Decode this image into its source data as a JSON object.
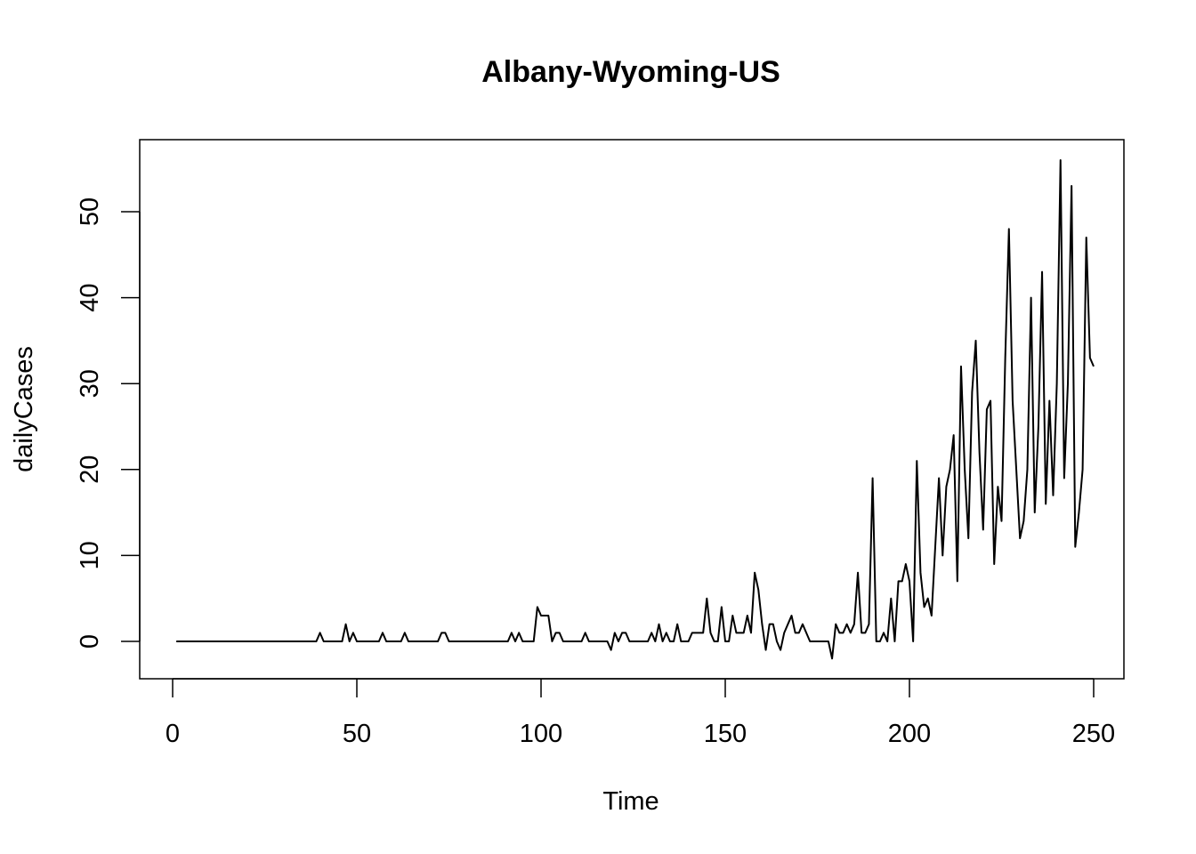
{
  "chart_data": {
    "type": "line",
    "title": "Albany-Wyoming-US",
    "xlabel": "Time",
    "ylabel": "dailyCases",
    "xlim": [
      1,
      248
    ],
    "ylim": [
      -2,
      56
    ],
    "xticks": [
      0,
      50,
      100,
      150,
      200,
      250
    ],
    "yticks": [
      0,
      10,
      20,
      30,
      40,
      50
    ],
    "grid": false,
    "legend": "none",
    "line_color": "#000000",
    "series": [
      {
        "x_start": 1,
        "values": [
          0,
          0,
          0,
          0,
          0,
          0,
          0,
          0,
          0,
          0,
          0,
          0,
          0,
          0,
          0,
          0,
          0,
          0,
          0,
          0,
          0,
          0,
          0,
          0,
          0,
          0,
          0,
          0,
          0,
          0,
          0,
          0,
          0,
          0,
          0,
          0,
          0,
          0,
          0,
          1,
          0,
          0,
          0,
          0,
          0,
          0,
          2,
          0,
          1,
          0,
          0,
          0,
          0,
          0,
          0,
          0,
          1,
          0,
          0,
          0,
          0,
          0,
          1,
          0,
          0,
          0,
          0,
          0,
          0,
          0,
          0,
          0,
          1,
          1,
          0,
          0,
          0,
          0,
          0,
          0,
          0,
          0,
          0,
          0,
          0,
          0,
          0,
          0,
          0,
          0,
          0,
          1,
          0,
          1,
          0,
          0,
          0,
          0,
          4,
          3,
          3,
          3,
          0,
          1,
          1,
          0,
          0,
          0,
          0,
          0,
          0,
          1,
          0,
          0,
          0,
          0,
          0,
          0,
          -1,
          1,
          0,
          1,
          1,
          0,
          0,
          0,
          0,
          0,
          0,
          1,
          0,
          2,
          0,
          1,
          0,
          0,
          2,
          0,
          0,
          0,
          1,
          1,
          1,
          1,
          5,
          1,
          0,
          0,
          4,
          0,
          0,
          3,
          1,
          1,
          1,
          3,
          1,
          8,
          6,
          2,
          -1,
          2,
          2,
          0,
          -1,
          1,
          2,
          3,
          1,
          1,
          2,
          1,
          0,
          0,
          0,
          0,
          0,
          0,
          -2,
          2,
          1,
          1,
          2,
          1,
          2,
          8,
          1,
          1,
          2,
          19,
          0,
          0,
          1,
          0,
          5,
          0,
          7,
          7,
          9,
          7,
          0,
          21,
          8,
          4,
          5,
          3,
          11,
          19,
          10,
          18,
          20,
          24,
          7,
          32,
          20,
          12,
          29,
          35,
          22,
          13,
          27,
          28,
          9,
          18,
          14,
          33,
          48,
          28,
          20,
          12,
          14,
          20,
          40,
          15,
          25,
          43,
          16,
          28,
          17,
          30,
          56,
          19,
          30,
          53,
          11,
          15,
          20,
          47,
          33,
          32
        ]
      }
    ]
  }
}
